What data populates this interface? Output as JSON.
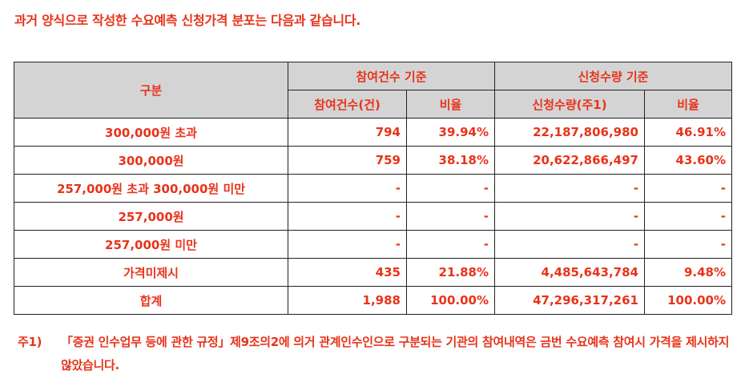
{
  "intro": "과거 양식으로 작성한 수요예측 신청가격 분포는 다음과 같습니다.",
  "table": {
    "header": {
      "category": "구분",
      "group_count": "참여건수 기준",
      "group_qty": "신청수량 기준",
      "count": "참여건수(건)",
      "count_ratio": "비율",
      "qty": "신청수량(주1)",
      "qty_ratio": "비율"
    },
    "rows": [
      {
        "category": "300,000원 초과",
        "count": "794",
        "count_ratio": "39.94%",
        "qty": "22,187,806,980",
        "qty_ratio": "46.91%"
      },
      {
        "category": "300,000원",
        "count": "759",
        "count_ratio": "38.18%",
        "qty": "20,622,866,497",
        "qty_ratio": "43.60%"
      },
      {
        "category": "257,000원 초과 300,000원 미만",
        "count": "-",
        "count_ratio": "-",
        "qty": "-",
        "qty_ratio": "-"
      },
      {
        "category": "257,000원",
        "count": "-",
        "count_ratio": "-",
        "qty": "-",
        "qty_ratio": "-"
      },
      {
        "category": "257,000원 미만",
        "count": "-",
        "count_ratio": "-",
        "qty": "-",
        "qty_ratio": "-"
      },
      {
        "category": "가격미제시",
        "count": "435",
        "count_ratio": "21.88%",
        "qty": "4,485,643,784",
        "qty_ratio": "9.48%"
      },
      {
        "category": "합계",
        "count": "1,988",
        "count_ratio": "100.00%",
        "qty": "47,296,317,261",
        "qty_ratio": "100.00%"
      }
    ]
  },
  "note": {
    "tag": "주1)",
    "text": "「증권 인수업무 등에 관한 규정」제9조의2에 의거 관계인수인으로 구분되는 기관의 참여내역은 금번 수요예측 참여시 가격을 제시하지 않았습니다."
  }
}
